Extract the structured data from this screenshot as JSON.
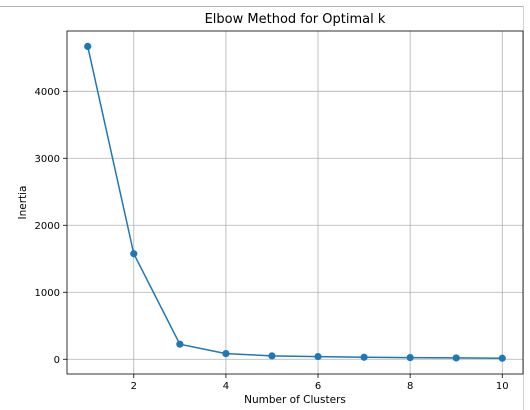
{
  "chart_data": {
    "type": "line",
    "title": "Elbow Method for Optimal k",
    "xlabel": "Number of Clusters",
    "ylabel": "Inertia",
    "x": [
      1,
      2,
      3,
      4,
      5,
      6,
      7,
      8,
      9,
      10
    ],
    "series": [
      {
        "values": [
          4670,
          1575,
          225,
          85,
          50,
          40,
          30,
          25,
          20,
          15
        ]
      }
    ],
    "xticks": [
      "2",
      "4",
      "6",
      "8",
      "10"
    ],
    "yticks": [
      "0",
      "1000",
      "2000",
      "3000",
      "4000"
    ],
    "xlim": [
      0.55,
      10.45
    ],
    "ylim": [
      -220,
      4900
    ],
    "grid": true,
    "line_color": "#1f77b4"
  }
}
